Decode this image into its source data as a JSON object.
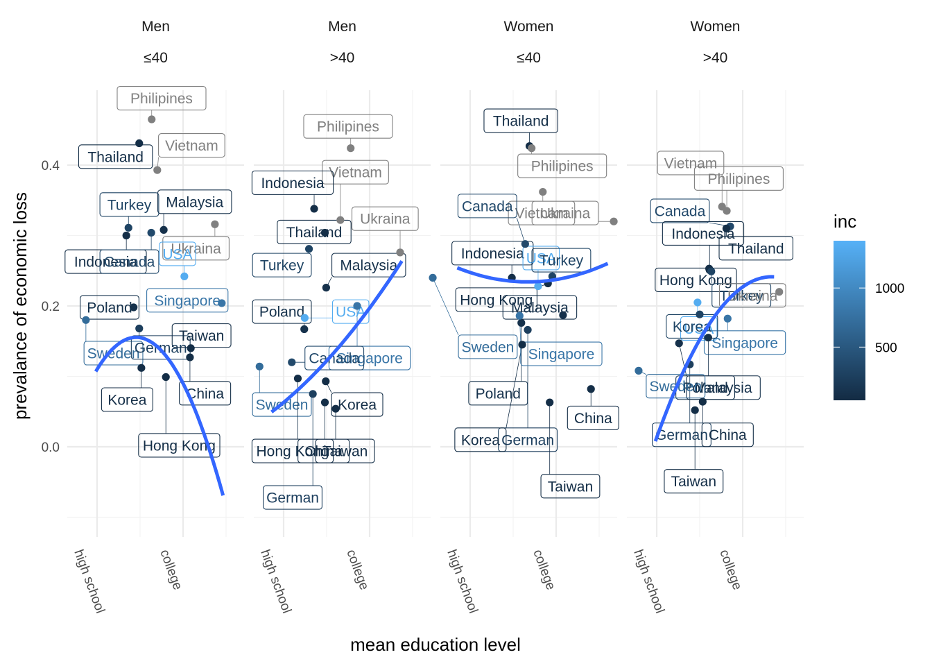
{
  "chart_data": {
    "type": "scatter",
    "title": "",
    "xlabel": "mean education level",
    "ylabel": "prevalance of economic loss",
    "x_ticks": [
      {
        "value": 1,
        "label": "high school"
      },
      {
        "value": 3,
        "label": "college"
      }
    ],
    "xlim": [
      0.3,
      4.4
    ],
    "y_ticks": [
      {
        "value": 0.0,
        "label": "0.0"
      },
      {
        "value": 0.2,
        "label": "0.2"
      },
      {
        "value": 0.4,
        "label": "0.4"
      }
    ],
    "ylim": [
      -0.13,
      0.52
    ],
    "grid": true,
    "legend": {
      "title": "inc",
      "type": "colorbar",
      "placement": "right",
      "range": [
        50,
        1400
      ],
      "ticks": [
        {
          "value": 500,
          "label": "500"
        },
        {
          "value": 1000,
          "label": "1000"
        }
      ],
      "low_color": "#132B43",
      "high_color": "#56B1F7"
    },
    "na_color": "#808080",
    "smooth_color": "#3366FF",
    "panels": [
      {
        "strip": [
          "Men",
          "≤40"
        ],
        "smooth": {
          "type": "quadratic",
          "x": [
            0.97,
            3.93
          ],
          "coef": [
            -0.045,
            0.21,
            -0.055
          ]
        },
        "points": [
          {
            "label": "Philipines",
            "x": 2.27,
            "y": 0.465,
            "inc": null,
            "lx": 2.5,
            "ly": 0.495
          },
          {
            "label": "Thailand",
            "x": 1.98,
            "y": 0.431,
            "inc": 80,
            "lx": 1.43,
            "ly": 0.412
          },
          {
            "label": "Vietnam",
            "x": 2.4,
            "y": 0.393,
            "inc": null,
            "lx": 3.2,
            "ly": 0.428
          },
          {
            "label": "Malaysia",
            "x": 2.55,
            "y": 0.308,
            "inc": 110,
            "lx": 3.27,
            "ly": 0.348
          },
          {
            "label": "Turkey",
            "x": 1.73,
            "y": 0.311,
            "inc": 300,
            "lx": 1.75,
            "ly": 0.344
          },
          {
            "label": "Indonesia",
            "x": 1.68,
            "y": 0.3,
            "inc": 90,
            "lx": 1.2,
            "ly": 0.263
          },
          {
            "label": "Canada",
            "x": 2.26,
            "y": 0.304,
            "inc": 350,
            "lx": 1.75,
            "ly": 0.263
          },
          {
            "label": "Ukraina",
            "x": 3.74,
            "y": 0.316,
            "inc": null,
            "lx": 3.3,
            "ly": 0.282
          },
          {
            "label": "USA",
            "x": 3.03,
            "y": 0.242,
            "inc": 1350,
            "lx": 2.87,
            "ly": 0.274
          },
          {
            "label": "Singapore",
            "x": 3.9,
            "y": 0.204,
            "inc": 800,
            "lx": 3.1,
            "ly": 0.208
          },
          {
            "label": "Poland",
            "x": 1.85,
            "y": 0.198,
            "inc": 120,
            "lx": 1.29,
            "ly": 0.198
          },
          {
            "label": "Sweden",
            "x": 0.74,
            "y": 0.18,
            "inc": 700,
            "lx": 1.38,
            "ly": 0.133
          },
          {
            "label": "German",
            "x": 1.98,
            "y": 0.168,
            "inc": 250,
            "lx": 2.48,
            "ly": 0.141
          },
          {
            "label": "Taiwan",
            "x": 3.18,
            "y": 0.14,
            "inc": 80,
            "lx": 3.43,
            "ly": 0.158
          },
          {
            "label": "China",
            "x": 3.16,
            "y": 0.127,
            "inc": 80,
            "lx": 3.51,
            "ly": 0.076
          },
          {
            "label": "Korea",
            "x": 2.03,
            "y": 0.112,
            "inc": 80,
            "lx": 1.7,
            "ly": 0.067
          },
          {
            "label": "Hong Kong",
            "x": 2.6,
            "y": 0.099,
            "inc": 80,
            "lx": 2.91,
            "ly": 0.002
          }
        ]
      },
      {
        "strip": [
          "Men",
          ">40"
        ],
        "smooth": {
          "type": "quadratic",
          "x": [
            0.72,
            3.75
          ],
          "coef": [
            0.02,
            0.035,
            0.008
          ]
        },
        "points": [
          {
            "label": "Philipines",
            "x": 2.56,
            "y": 0.424,
            "inc": null,
            "lx": 2.5,
            "ly": 0.455
          },
          {
            "label": "Vietnam",
            "x": 2.32,
            "y": 0.322,
            "inc": null,
            "lx": 2.67,
            "ly": 0.39
          },
          {
            "label": "Indonesia",
            "x": 1.71,
            "y": 0.338,
            "inc": 80,
            "lx": 1.21,
            "ly": 0.375
          },
          {
            "label": "Ukraina",
            "x": 3.71,
            "y": 0.276,
            "inc": null,
            "lx": 3.36,
            "ly": 0.324
          },
          {
            "label": "Thailand",
            "x": 1.96,
            "y": 0.304,
            "inc": 80,
            "lx": 1.71,
            "ly": 0.305
          },
          {
            "label": "Turkey",
            "x": 1.59,
            "y": 0.281,
            "inc": 300,
            "lx": 0.96,
            "ly": 0.258
          },
          {
            "label": "Malaysia",
            "x": 1.99,
            "y": 0.226,
            "inc": 110,
            "lx": 2.98,
            "ly": 0.258
          },
          {
            "label": "Singapore",
            "x": 2.71,
            "y": 0.2,
            "inc": 800,
            "lx": 3.0,
            "ly": 0.126
          },
          {
            "label": "USA",
            "x": 1.49,
            "y": 0.183,
            "inc": 1350,
            "lx": 2.56,
            "ly": 0.192
          },
          {
            "label": "Poland",
            "x": 1.48,
            "y": 0.167,
            "inc": 120,
            "lx": 0.96,
            "ly": 0.192
          },
          {
            "label": "Canada",
            "x": 1.19,
            "y": 0.12,
            "inc": 350,
            "lx": 2.18,
            "ly": 0.126
          },
          {
            "label": "Sweden",
            "x": 0.44,
            "y": 0.114,
            "inc": 700,
            "lx": 0.96,
            "ly": 0.06
          },
          {
            "label": "Hong Kong",
            "x": 1.33,
            "y": 0.097,
            "inc": 80,
            "lx": 1.21,
            "ly": -0.006
          },
          {
            "label": "Korea",
            "x": 1.98,
            "y": 0.093,
            "inc": 80,
            "lx": 2.71,
            "ly": 0.06
          },
          {
            "label": "German",
            "x": 1.68,
            "y": 0.075,
            "inc": 250,
            "lx": 1.21,
            "ly": -0.072
          },
          {
            "label": "China",
            "x": 1.96,
            "y": 0.063,
            "inc": 80,
            "lx": 1.93,
            "ly": -0.006
          },
          {
            "label": "Taiwan",
            "x": 2.21,
            "y": 0.054,
            "inc": 80,
            "lx": 2.43,
            "ly": -0.006
          }
        ]
      },
      {
        "strip": [
          "Women",
          "≤40"
        ],
        "smooth": {
          "type": "quadratic",
          "x": [
            0.7,
            4.2
          ],
          "coef": [
            0.275,
            -0.035,
            0.0075
          ]
        },
        "points": [
          {
            "label": "Thailand",
            "x": 2.38,
            "y": 0.427,
            "inc": 80,
            "lx": 2.18,
            "ly": 0.463
          },
          {
            "label": "Philipines",
            "x": 2.43,
            "y": 0.424,
            "inc": null,
            "lx": 3.14,
            "ly": 0.399
          },
          {
            "label": "Vietnam",
            "x": 2.69,
            "y": 0.362,
            "inc": null,
            "lx": 2.66,
            "ly": 0.332
          },
          {
            "label": "Ukraina",
            "x": 4.34,
            "y": 0.32,
            "inc": null,
            "lx": 3.21,
            "ly": 0.332
          },
          {
            "label": "Canada",
            "x": 2.28,
            "y": 0.288,
            "inc": 350,
            "lx": 1.4,
            "ly": 0.342
          },
          {
            "label": "Indonesia",
            "x": 1.97,
            "y": 0.24,
            "inc": 80,
            "lx": 1.52,
            "ly": 0.275
          },
          {
            "label": "USA",
            "x": 2.58,
            "y": 0.228,
            "inc": 1350,
            "lx": 2.65,
            "ly": 0.268
          },
          {
            "label": "Turkey",
            "x": 2.91,
            "y": 0.242,
            "inc": 300,
            "lx": 3.12,
            "ly": 0.265
          },
          {
            "label": "Hong Kong",
            "x": 2.81,
            "y": 0.232,
            "inc": 80,
            "lx": 1.61,
            "ly": 0.209
          },
          {
            "label": "Sweden",
            "x": 0.13,
            "y": 0.24,
            "inc": 700,
            "lx": 1.41,
            "ly": 0.142
          },
          {
            "label": "Malaysia",
            "x": 3.16,
            "y": 0.187,
            "inc": 110,
            "lx": 2.62,
            "ly": 0.198
          },
          {
            "label": "Poland",
            "x": 2.19,
            "y": 0.176,
            "inc": 120,
            "lx": 1.65,
            "ly": 0.076
          },
          {
            "label": "German",
            "x": 2.34,
            "y": 0.166,
            "inc": 250,
            "lx": 2.34,
            "ly": 0.01
          },
          {
            "label": "Korea",
            "x": 2.21,
            "y": 0.145,
            "inc": 80,
            "lx": 1.24,
            "ly": 0.01
          },
          {
            "label": "Singapore",
            "x": 2.15,
            "y": 0.186,
            "inc": 800,
            "lx": 3.12,
            "ly": 0.132
          },
          {
            "label": "China",
            "x": 3.81,
            "y": 0.082,
            "inc": 80,
            "lx": 3.86,
            "ly": 0.041
          },
          {
            "label": "Taiwan",
            "x": 2.85,
            "y": 0.063,
            "inc": 80,
            "lx": 3.33,
            "ly": -0.056
          }
        ]
      },
      {
        "strip": [
          "Women",
          ">40"
        ],
        "smooth": {
          "type": "quadratic",
          "x": [
            0.97,
            3.73
          ],
          "coef": [
            -0.19,
            0.235,
            -0.032
          ]
        },
        "points": [
          {
            "label": "Vietnam",
            "x": 2.52,
            "y": 0.341,
            "inc": null,
            "lx": 1.79,
            "ly": 0.403
          },
          {
            "label": "Philipines",
            "x": 2.63,
            "y": 0.335,
            "inc": null,
            "lx": 2.91,
            "ly": 0.381
          },
          {
            "label": "Canada",
            "x": 2.71,
            "y": 0.313,
            "inc": 350,
            "lx": 1.54,
            "ly": 0.335
          },
          {
            "label": "Indonesia",
            "x": 2.23,
            "y": 0.251,
            "inc": 80,
            "lx": 2.08,
            "ly": 0.303
          },
          {
            "label": "Thailand",
            "x": 2.62,
            "y": 0.31,
            "inc": 80,
            "lx": 3.31,
            "ly": 0.282
          },
          {
            "label": "Hong Kong",
            "x": 2.22,
            "y": 0.253,
            "inc": 80,
            "lx": 1.91,
            "ly": 0.237
          },
          {
            "label": "Turkey",
            "x": 2.27,
            "y": 0.249,
            "inc": 300,
            "lx": 2.97,
            "ly": 0.215
          },
          {
            "label": "Ukraina",
            "x": 3.85,
            "y": 0.22,
            "inc": null,
            "lx": 3.23,
            "ly": 0.215
          },
          {
            "label": "USA",
            "x": 1.95,
            "y": 0.205,
            "inc": 1350,
            "lx": 1.98,
            "ly": 0.168
          },
          {
            "label": "Singapore",
            "x": 2.65,
            "y": 0.182,
            "inc": 800,
            "lx": 3.05,
            "ly": 0.148
          },
          {
            "label": "Korea",
            "x": 2.0,
            "y": 0.188,
            "inc": 300,
            "lx": 1.82,
            "ly": 0.171
          },
          {
            "label": "Poland",
            "x": 2.2,
            "y": 0.155,
            "inc": 120,
            "lx": 2.13,
            "ly": 0.084
          },
          {
            "label": "Malaysia",
            "x": 1.52,
            "y": 0.147,
            "inc": 110,
            "lx": 2.55,
            "ly": 0.084
          },
          {
            "label": "German",
            "x": 1.77,
            "y": 0.117,
            "inc": 250,
            "lx": 1.58,
            "ly": 0.017
          },
          {
            "label": "Sweden",
            "x": 0.58,
            "y": 0.108,
            "inc": 700,
            "lx": 1.44,
            "ly": 0.086
          },
          {
            "label": "China",
            "x": 2.07,
            "y": 0.064,
            "inc": 80,
            "lx": 2.65,
            "ly": 0.017
          },
          {
            "label": "Taiwan",
            "x": 1.89,
            "y": 0.052,
            "inc": 80,
            "lx": 1.86,
            "ly": -0.049
          }
        ]
      }
    ]
  }
}
